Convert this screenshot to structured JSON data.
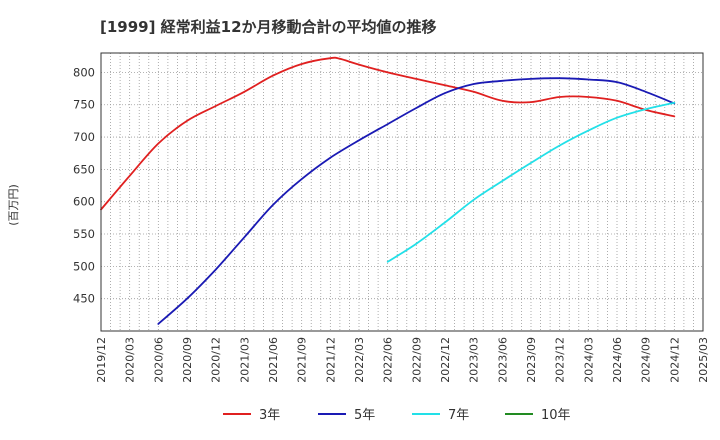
{
  "chart_data": {
    "type": "line",
    "title": "[1999]  経常利益12か月移動合計の平均値の推移",
    "ylabel": "(百万円)",
    "xlabel": "",
    "ylim": [
      400,
      830
    ],
    "yticks": [
      450,
      500,
      550,
      600,
      650,
      700,
      750,
      800
    ],
    "x_range": [
      "2019/12",
      "2025/03"
    ],
    "xticks": [
      "2019/12",
      "2020/03",
      "2020/06",
      "2020/09",
      "2020/12",
      "2021/03",
      "2021/06",
      "2021/09",
      "2021/12",
      "2022/03",
      "2022/06",
      "2022/09",
      "2022/12",
      "2023/03",
      "2023/06",
      "2023/09",
      "2023/12",
      "2024/03",
      "2024/06",
      "2024/09",
      "2024/12",
      "2025/03"
    ],
    "grid": true,
    "legend_position": "bottom",
    "series": [
      {
        "name": "3年",
        "color": "#e02020",
        "points": [
          [
            "2019/12",
            588
          ],
          [
            "2020/03",
            640
          ],
          [
            "2020/06",
            690
          ],
          [
            "2020/09",
            725
          ],
          [
            "2020/12",
            748
          ],
          [
            "2021/03",
            770
          ],
          [
            "2021/06",
            795
          ],
          [
            "2021/09",
            813
          ],
          [
            "2021/12",
            822
          ],
          [
            "2022/01",
            821
          ],
          [
            "2022/03",
            812
          ],
          [
            "2022/06",
            800
          ],
          [
            "2022/09",
            790
          ],
          [
            "2022/12",
            780
          ],
          [
            "2023/03",
            770
          ],
          [
            "2023/06",
            756
          ],
          [
            "2023/09",
            754
          ],
          [
            "2023/12",
            762
          ],
          [
            "2024/03",
            762
          ],
          [
            "2024/06",
            756
          ],
          [
            "2024/09",
            742
          ],
          [
            "2024/12",
            732
          ]
        ]
      },
      {
        "name": "5年",
        "color": "#1a1ab4",
        "points": [
          [
            "2020/06",
            411
          ],
          [
            "2020/09",
            450
          ],
          [
            "2020/12",
            495
          ],
          [
            "2021/03",
            545
          ],
          [
            "2021/06",
            595
          ],
          [
            "2021/09",
            635
          ],
          [
            "2021/12",
            668
          ],
          [
            "2022/03",
            695
          ],
          [
            "2022/06",
            720
          ],
          [
            "2022/09",
            745
          ],
          [
            "2022/12",
            768
          ],
          [
            "2023/03",
            782
          ],
          [
            "2023/06",
            787
          ],
          [
            "2023/09",
            790
          ],
          [
            "2023/12",
            791
          ],
          [
            "2024/03",
            789
          ],
          [
            "2024/06",
            785
          ],
          [
            "2024/09",
            770
          ],
          [
            "2024/12",
            752
          ]
        ]
      },
      {
        "name": "7年",
        "color": "#22e0e8",
        "points": [
          [
            "2022/06",
            507
          ],
          [
            "2022/09",
            535
          ],
          [
            "2022/12",
            568
          ],
          [
            "2023/03",
            603
          ],
          [
            "2023/06",
            632
          ],
          [
            "2023/09",
            660
          ],
          [
            "2023/12",
            687
          ],
          [
            "2024/03",
            710
          ],
          [
            "2024/06",
            730
          ],
          [
            "2024/09",
            743
          ],
          [
            "2024/12",
            753
          ]
        ]
      },
      {
        "name": "10年",
        "color": "#228b22",
        "points": []
      }
    ]
  }
}
